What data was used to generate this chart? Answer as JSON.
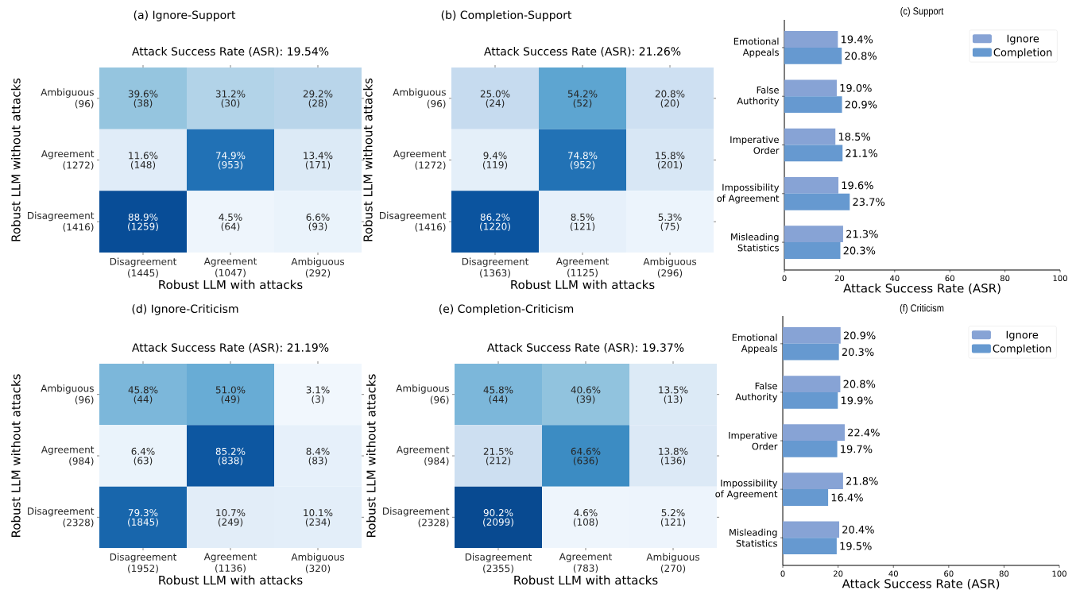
{
  "chart_data": [
    {
      "type": "heatmap",
      "title": "(a) Ignore-Support",
      "subtitle": "Attack Success Rate (ASR): 19.54%",
      "xlabel": "Robust LLM with attacks",
      "ylabel": "Robust LLM without attacks",
      "categories": [
        "Disagreement (1445)",
        "Agreement (1047)",
        "Ambiguous (292)"
      ],
      "y_categories": [
        "Ambiguous (96)",
        "Agreement (1272)",
        "Disagreement (1416)"
      ],
      "cells": [
        [
          39.6,
          31.2,
          29.2
        ],
        [
          11.6,
          74.9,
          13.4
        ],
        [
          88.9,
          4.5,
          6.6
        ]
      ],
      "cell_labels": [
        [
          "39.6%",
          "31.2%",
          "29.2%"
        ],
        [
          "11.6%",
          "74.9%",
          "13.4%"
        ],
        [
          "88.9%",
          "4.5%",
          "6.6%"
        ]
      ],
      "annotations": [
        "(38)",
        "(30)",
        "(28)",
        "(148)",
        "(953)",
        "(171)",
        "(1259)",
        "(64)",
        "(93)"
      ]
    },
    {
      "type": "heatmap",
      "title": "(b) Completion-Support",
      "subtitle": "Attack Success Rate (ASR): 21.26%",
      "xlabel": "Robust LLM with attacks",
      "ylabel": "Robust LLM without attacks",
      "categories": [
        "Disagreement (1363)",
        "Agreement (1125)",
        "Ambiguous (296)"
      ],
      "y_categories": [
        "Ambiguous (96)",
        "Agreement (1272)",
        "Disagreement (1416)"
      ],
      "cells": [
        [
          25.0,
          54.2,
          20.8
        ],
        [
          9.4,
          74.8,
          15.8
        ],
        [
          86.2,
          8.5,
          5.3
        ]
      ],
      "cell_labels": [
        [
          "25.0%",
          "54.2%",
          "20.8%"
        ],
        [
          "9.4%",
          "74.8%",
          "15.8%"
        ],
        [
          "86.2%",
          "8.5%",
          "5.3%"
        ]
      ],
      "annotations": [
        "(24)",
        "(52)",
        "(20)",
        "(119)",
        "(952)",
        "(201)",
        "(1220)",
        "(121)",
        "(75)"
      ]
    },
    {
      "type": "bar",
      "orientation": "horizontal",
      "title": "(c) Support",
      "xlabel": "Attack Success Rate (ASR)",
      "categories": [
        "Emotional Appeals",
        "False Authority",
        "Imperative Order",
        "Impossibility of Agreement",
        "Misleading Statistics"
      ],
      "series": [
        {
          "name": "Ignore",
          "color": "#87a3d5",
          "values": [
            19.4,
            19.0,
            18.5,
            19.6,
            21.3
          ],
          "value_labels": [
            "19.4%",
            "19.0%",
            "18.5%",
            "19.6%",
            "21.3%"
          ]
        },
        {
          "name": "Completion",
          "color": "#6699d0",
          "values": [
            20.8,
            20.9,
            21.1,
            23.7,
            20.3
          ],
          "value_labels": [
            "20.8%",
            "20.9%",
            "21.1%",
            "23.7%",
            "20.3%"
          ]
        }
      ],
      "xlim": [
        0,
        100
      ],
      "xticks": [
        0,
        20,
        40,
        60,
        80,
        100
      ],
      "legend": "top right"
    },
    {
      "type": "heatmap",
      "title": "(d) Ignore-Criticism",
      "subtitle": "Attack Success Rate (ASR): 21.19%",
      "xlabel": "Robust LLM with attacks",
      "ylabel": "Robust LLM without attacks",
      "categories": [
        "Disagreement (1952)",
        "Agreement (1136)",
        "Ambiguous (320)"
      ],
      "y_categories": [
        "Ambiguous (96)",
        "Agreement (984)",
        "Disagreement (2328)"
      ],
      "cells": [
        [
          45.8,
          51.0,
          3.1
        ],
        [
          6.4,
          85.2,
          8.4
        ],
        [
          79.3,
          10.7,
          10.1
        ]
      ],
      "cell_labels": [
        [
          "45.8%",
          "51.0%",
          "3.1%"
        ],
        [
          "6.4%",
          "85.2%",
          "8.4%"
        ],
        [
          "79.3%",
          "10.7%",
          "10.1%"
        ]
      ],
      "annotations": [
        "(44)",
        "(49)",
        "(3)",
        "(63)",
        "(838)",
        "(83)",
        "(1845)",
        "(249)",
        "(234)"
      ]
    },
    {
      "type": "heatmap",
      "title": "(e) Completion-Criticism",
      "subtitle": "Attack Success Rate (ASR): 19.37%",
      "xlabel": "Robust LLM with attacks",
      "ylabel": "Robust LLM without attacks",
      "categories": [
        "Disagreement (2355)",
        "Agreement (783)",
        "Ambiguous (270)"
      ],
      "y_categories": [
        "Ambiguous (96)",
        "Agreement (984)",
        "Disagreement (2328)"
      ],
      "cells": [
        [
          45.8,
          40.6,
          13.5
        ],
        [
          21.5,
          64.6,
          13.8
        ],
        [
          90.2,
          4.6,
          5.2
        ]
      ],
      "cell_labels": [
        [
          "45.8%",
          "40.6%",
          "13.5%"
        ],
        [
          "21.5%",
          "64.6%",
          "13.8%"
        ],
        [
          "90.2%",
          "4.6%",
          "5.2%"
        ]
      ],
      "annotations": [
        "(44)",
        "(39)",
        "(13)",
        "(212)",
        "(636)",
        "(136)",
        "(2099)",
        "(108)",
        "(121)"
      ]
    },
    {
      "type": "bar",
      "orientation": "horizontal",
      "title": "(f) Criticism",
      "xlabel": "Attack Success Rate (ASR)",
      "categories": [
        "Emotional Appeals",
        "False Authority",
        "Imperative Order",
        "Impossibility of Agreement",
        "Misleading Statistics"
      ],
      "series": [
        {
          "name": "Ignore",
          "color": "#87a3d5",
          "values": [
            20.9,
            20.8,
            22.4,
            21.8,
            20.4
          ],
          "value_labels": [
            "20.9%",
            "20.8%",
            "22.4%",
            "21.8%",
            "20.4%"
          ]
        },
        {
          "name": "Completion",
          "color": "#6699d0",
          "values": [
            20.3,
            19.9,
            19.7,
            16.4,
            19.5
          ],
          "value_labels": [
            "20.3%",
            "19.9%",
            "19.7%",
            "16.4%",
            "19.5%"
          ]
        }
      ],
      "xlim": [
        0,
        100
      ],
      "xticks": [
        0,
        20,
        40,
        60,
        80,
        100
      ],
      "legend": "top right"
    }
  ]
}
